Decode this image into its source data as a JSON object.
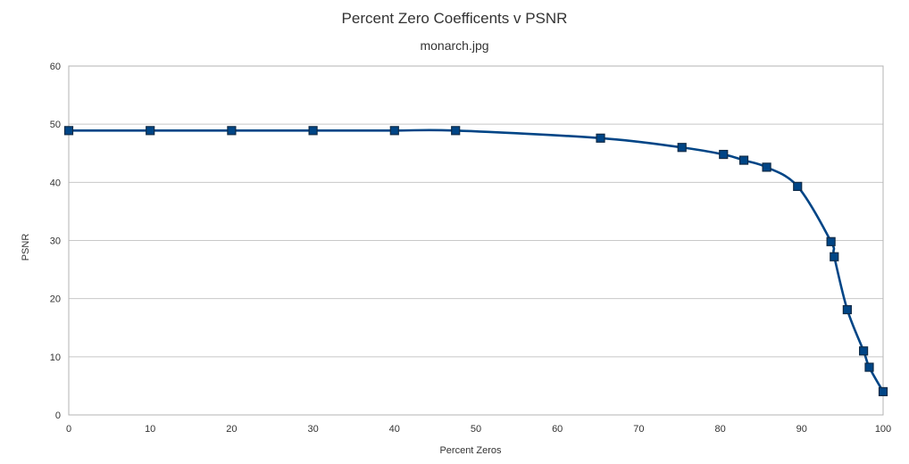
{
  "chart_data": {
    "type": "line",
    "title": "Percent Zero Coefficents v PSNR",
    "subtitle": "monarch.jpg",
    "xlabel": "Percent Zeros",
    "ylabel": "PSNR",
    "xlim": [
      0,
      100
    ],
    "ylim": [
      0,
      60
    ],
    "xticks": [
      0,
      10,
      20,
      30,
      40,
      50,
      60,
      70,
      80,
      90,
      100
    ],
    "yticks": [
      0,
      10,
      20,
      30,
      40,
      50,
      60
    ],
    "grid": "horizontal",
    "legend": "none",
    "smooth": true,
    "color": "#004586",
    "series": [
      {
        "x": [
          0,
          10,
          20,
          30,
          40,
          47.5,
          65.3,
          75.3,
          80.4,
          82.9,
          85.7,
          89.5,
          93.6,
          94.0,
          95.6,
          97.6,
          98.3,
          100
        ],
        "y": [
          48.9,
          48.9,
          48.9,
          48.9,
          48.9,
          48.9,
          47.6,
          46.0,
          44.8,
          43.8,
          42.6,
          39.3,
          29.8,
          27.2,
          18.1,
          11.0,
          8.2,
          4.0
        ]
      }
    ]
  }
}
